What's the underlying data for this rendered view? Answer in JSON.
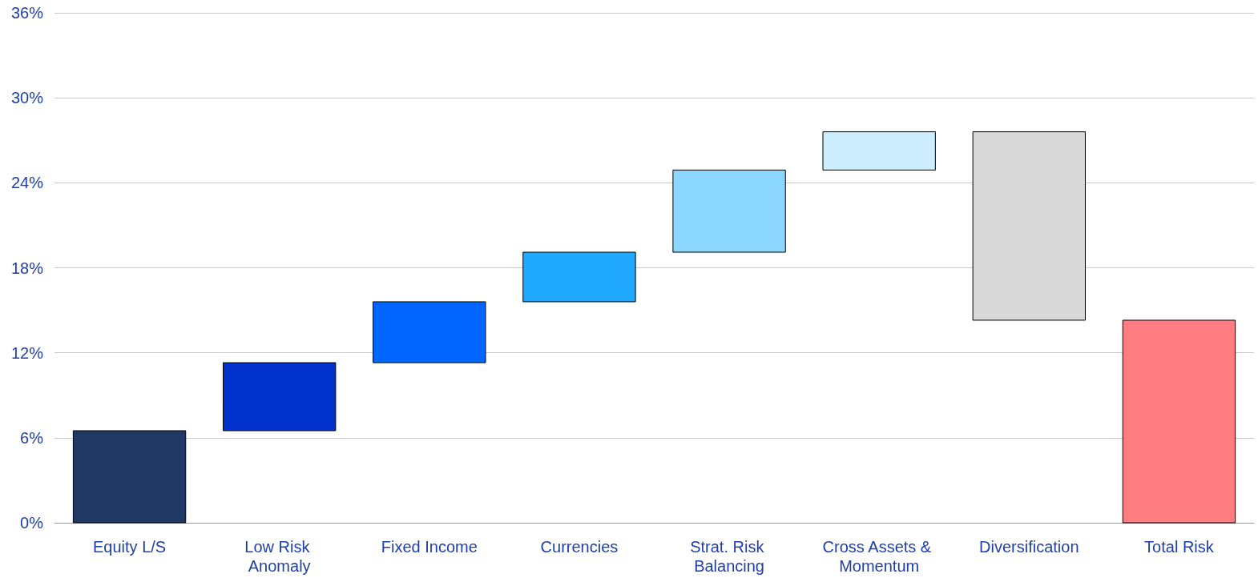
{
  "chart_data": {
    "type": "bar",
    "categories": [
      "Equity L/S",
      "Low Risk Anomaly",
      "Fixed Income",
      "Currencies",
      "Strat. Risk Balancing",
      "Cross Assets & Momentum",
      "Diversification",
      "Total Risk"
    ],
    "values": [
      6.5,
      4.8,
      4.3,
      3.5,
      5.8,
      2.7,
      -13.3,
      14.3
    ],
    "base": [
      0,
      6.5,
      11.3,
      15.6,
      19.1,
      24.9,
      27.6,
      0
    ],
    "colors": [
      "#203864",
      "#0033cc",
      "#0066ff",
      "#21a9ff",
      "#8cd7ff",
      "#cdeeff",
      "#d9d9d9",
      "#ff7c80"
    ],
    "ylim": [
      0,
      36
    ],
    "yticks": [
      {
        "value": 0,
        "label": "0%"
      },
      {
        "value": 6,
        "label": "6%"
      },
      {
        "value": 12,
        "label": "12%"
      },
      {
        "value": 18,
        "label": "18%"
      },
      {
        "value": 24,
        "label": "24%"
      },
      {
        "value": 30,
        "label": "30%"
      },
      {
        "value": 36,
        "label": "36%"
      }
    ],
    "grid": "y"
  }
}
